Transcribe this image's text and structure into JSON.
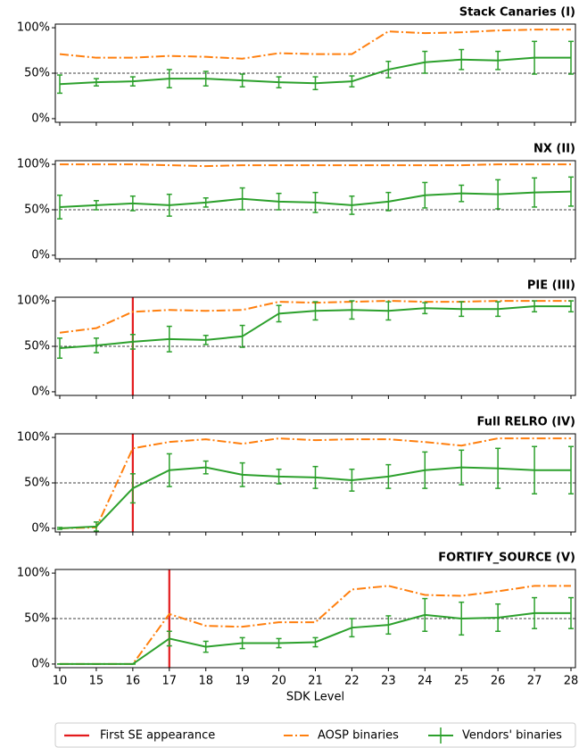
{
  "chart_data": [
    {
      "type": "line",
      "title": "Stack Canaries (I)",
      "ylim": [
        -4,
        104
      ],
      "yticks": [
        {
          "value": 0,
          "label": "0%"
        },
        {
          "value": 50,
          "label": "50%"
        },
        {
          "value": 100,
          "label": "100%"
        }
      ],
      "hline": 50,
      "series": [
        {
          "color": "#ff7f0e",
          "style": "dashdot",
          "values": [
            71,
            67,
            67,
            69,
            68,
            66,
            72,
            71,
            71,
            96,
            94,
            95,
            97,
            98,
            98
          ]
        },
        {
          "color": "#2ca02c",
          "values": [
            38,
            40,
            41,
            44,
            44,
            42,
            40,
            39,
            41,
            54,
            62,
            65,
            64,
            67,
            67
          ],
          "errors": [
            10,
            4,
            5,
            10,
            8,
            7,
            6,
            7,
            6,
            9,
            12,
            11,
            10,
            18,
            18
          ]
        }
      ]
    },
    {
      "type": "line",
      "title": "NX (II)",
      "ylim": [
        -4,
        104
      ],
      "yticks": [
        {
          "value": 0,
          "label": "0%"
        },
        {
          "value": 50,
          "label": "50%"
        },
        {
          "value": 100,
          "label": "100%"
        }
      ],
      "hline": 50,
      "series": [
        {
          "color": "#ff7f0e",
          "style": "dashdot",
          "values": [
            100,
            100,
            100,
            99,
            98,
            99,
            99,
            99,
            99,
            99,
            99,
            99,
            100,
            100,
            100
          ]
        },
        {
          "color": "#2ca02c",
          "values": [
            53,
            55,
            57,
            55,
            58,
            62,
            59,
            58,
            55,
            59,
            66,
            68,
            67,
            69,
            70
          ],
          "errors": [
            13,
            5,
            8,
            12,
            5,
            12,
            9,
            11,
            10,
            10,
            14,
            9,
            16,
            16,
            16
          ]
        }
      ]
    },
    {
      "type": "line",
      "title": "PIE (III)",
      "ylim": [
        -4,
        104
      ],
      "yticks": [
        {
          "value": 0,
          "label": "0%"
        },
        {
          "value": 50,
          "label": "50%"
        },
        {
          "value": 100,
          "label": "100%"
        }
      ],
      "hline": 50,
      "vline": {
        "x": 2,
        "color": "#e31a1c"
      },
      "series": [
        {
          "color": "#ff7f0e",
          "style": "dashdot",
          "values": [
            65,
            70,
            88,
            90,
            89,
            90,
            99,
            98,
            99,
            100,
            99,
            99,
            100,
            100,
            100
          ]
        },
        {
          "color": "#2ca02c",
          "values": [
            48,
            51,
            55,
            58,
            57,
            61,
            86,
            89,
            90,
            89,
            92,
            91,
            91,
            94,
            94
          ],
          "errors": [
            11,
            8,
            8,
            14,
            5,
            12,
            9,
            10,
            10,
            10,
            6,
            8,
            8,
            6,
            6
          ]
        }
      ]
    },
    {
      "type": "line",
      "title": "Full RELRO (IV)",
      "ylim": [
        -4,
        104
      ],
      "yticks": [
        {
          "value": 0,
          "label": "0%"
        },
        {
          "value": 50,
          "label": "50%"
        },
        {
          "value": 100,
          "label": "100%"
        }
      ],
      "hline": 50,
      "vline": {
        "x": 2,
        "color": "#e31a1c"
      },
      "series": [
        {
          "color": "#ff7f0e",
          "style": "dashdot",
          "values": [
            0,
            1,
            88,
            95,
            98,
            93,
            99,
            97,
            98,
            98,
            95,
            91,
            99,
            99,
            99
          ]
        },
        {
          "color": "#2ca02c",
          "values": [
            0,
            2,
            44,
            64,
            67,
            59,
            57,
            56,
            53,
            57,
            64,
            67,
            66,
            64,
            64
          ],
          "errors": [
            1,
            5,
            16,
            18,
            7,
            13,
            8,
            12,
            12,
            13,
            20,
            19,
            22,
            26,
            26
          ]
        }
      ]
    },
    {
      "type": "line",
      "title": "FORTIFY_SOURCE (V)",
      "ylim": [
        -4,
        104
      ],
      "yticks": [
        {
          "value": 0,
          "label": "0%"
        },
        {
          "value": 50,
          "label": "50%"
        },
        {
          "value": 100,
          "label": "100%"
        }
      ],
      "hline": 50,
      "vline": {
        "x": 3,
        "color": "#e31a1c",
        "name": "First SE appearance"
      },
      "xlabel": "SDK Level",
      "categories": [
        "10",
        "15",
        "16",
        "17",
        "18",
        "19",
        "20",
        "21",
        "22",
        "23",
        "24",
        "25",
        "26",
        "27",
        "28"
      ],
      "series": [
        {
          "name": "AOSP binaries",
          "color": "#ff7f0e",
          "style": "dashdot",
          "values": [
            0,
            0,
            0,
            55,
            42,
            41,
            46,
            46,
            82,
            86,
            76,
            75,
            80,
            86,
            86
          ]
        },
        {
          "name": "Vendors' binaries",
          "color": "#2ca02c",
          "values": [
            0,
            0,
            0,
            28,
            19,
            23,
            23,
            24,
            40,
            43,
            54,
            50,
            51,
            56,
            56
          ],
          "errors": [
            0,
            0,
            0,
            8,
            6,
            6,
            5,
            5,
            10,
            10,
            18,
            18,
            15,
            17,
            17
          ]
        }
      ]
    }
  ]
}
